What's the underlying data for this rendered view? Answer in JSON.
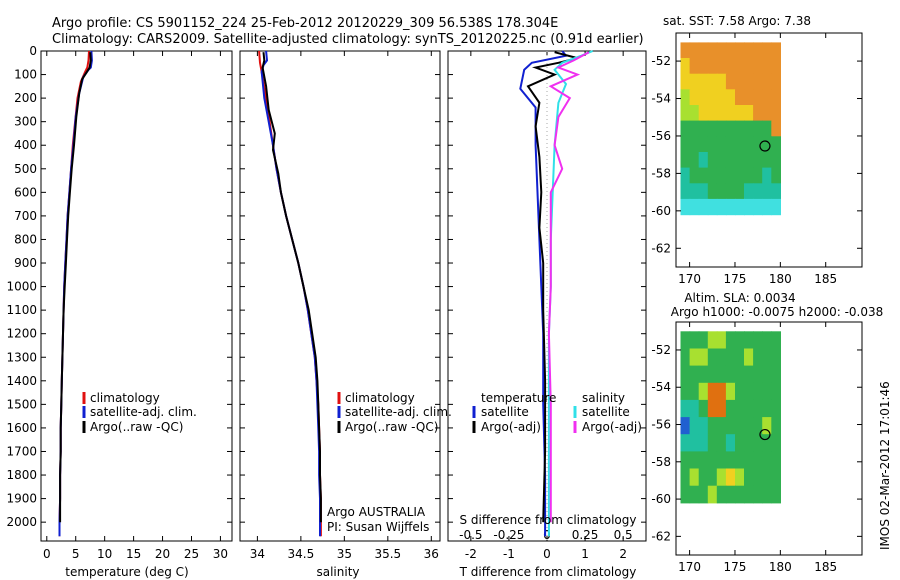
{
  "header": {
    "line1": "Argo profile: CS 5901152_224 25-Feb-2012 20120229_309 56.538S 178.304E",
    "line2": "Climatology: CARS2009. Satellite-adjusted climatology: synTS_20120225.nc (0.91d earlier)"
  },
  "colors": {
    "climatology": "#e01010",
    "satellite": "#1020d0",
    "argo": "#000000",
    "sal_satellite": "#30e0e8",
    "sal_argo": "#f030f0"
  },
  "chart_data": [
    {
      "type": "line",
      "panel": "temperature",
      "xlabel": "temperature (deg C)",
      "ylabel": "",
      "xlim": [
        -1,
        32
      ],
      "xticks": [
        0,
        5,
        10,
        15,
        20,
        25,
        30
      ],
      "xtick_labels": [
        "0",
        "5",
        "10",
        "15",
        "20",
        "25",
        "30"
      ],
      "ylim": [
        2080,
        0
      ],
      "yticks": [
        0,
        100,
        200,
        300,
        400,
        500,
        600,
        700,
        800,
        900,
        1000,
        1100,
        1200,
        1300,
        1400,
        1500,
        1600,
        1700,
        1800,
        1900,
        2000
      ],
      "legend": [
        "climatology",
        "satellite-adj. clim.",
        "Argo(..raw -QC)"
      ],
      "series": [
        {
          "name": "climatology",
          "color_key": "climatology",
          "points": [
            [
              7.3,
              0
            ],
            [
              7.2,
              40
            ],
            [
              7.0,
              70
            ],
            [
              6.6,
              90
            ],
            [
              5.9,
              130
            ],
            [
              5.3,
              200
            ],
            [
              4.9,
              300
            ],
            [
              4.5,
              400
            ],
            [
              4.2,
              500
            ],
            [
              3.9,
              600
            ],
            [
              3.6,
              700
            ],
            [
              3.4,
              800
            ],
            [
              3.2,
              900
            ],
            [
              3.0,
              1000
            ],
            [
              2.9,
              1100
            ],
            [
              2.8,
              1200
            ],
            [
              2.7,
              1300
            ],
            [
              2.6,
              1400
            ],
            [
              2.5,
              1500
            ],
            [
              2.4,
              1600
            ],
            [
              2.4,
              1700
            ],
            [
              2.3,
              1800
            ],
            [
              2.3,
              1900
            ],
            [
              2.2,
              2000
            ],
            [
              2.2,
              2060
            ]
          ]
        },
        {
          "name": "satellite-adj. clim.",
          "color_key": "satellite",
          "points": [
            [
              7.7,
              0
            ],
            [
              7.8,
              40
            ],
            [
              7.6,
              70
            ],
            [
              7.2,
              80
            ],
            [
              6.3,
              110
            ],
            [
              5.6,
              180
            ],
            [
              5.0,
              280
            ],
            [
              4.6,
              400
            ],
            [
              4.2,
              500
            ],
            [
              3.9,
              600
            ],
            [
              3.6,
              700
            ],
            [
              3.4,
              800
            ],
            [
              3.2,
              900
            ],
            [
              3.0,
              1000
            ],
            [
              2.9,
              1100
            ],
            [
              2.8,
              1200
            ],
            [
              2.7,
              1300
            ],
            [
              2.6,
              1400
            ],
            [
              2.5,
              1500
            ],
            [
              2.4,
              1600
            ],
            [
              2.4,
              1700
            ],
            [
              2.3,
              1800
            ],
            [
              2.3,
              1900
            ],
            [
              2.2,
              2000
            ],
            [
              2.2,
              2060
            ]
          ]
        },
        {
          "name": "Argo(..raw -QC)",
          "color_key": "argo",
          "points": [
            [
              7.5,
              5
            ],
            [
              7.6,
              40
            ],
            [
              7.4,
              70
            ],
            [
              6.9,
              90
            ],
            [
              6.1,
              120
            ],
            [
              5.6,
              180
            ],
            [
              5.1,
              280
            ],
            [
              4.7,
              400
            ],
            [
              4.3,
              500
            ],
            [
              4.0,
              600
            ],
            [
              3.7,
              700
            ],
            [
              3.5,
              800
            ],
            [
              3.3,
              900
            ],
            [
              3.1,
              1000
            ],
            [
              2.9,
              1100
            ],
            [
              2.8,
              1200
            ],
            [
              2.7,
              1300
            ],
            [
              2.6,
              1400
            ],
            [
              2.5,
              1500
            ],
            [
              2.4,
              1600
            ],
            [
              2.4,
              1700
            ],
            [
              2.3,
              1800
            ],
            [
              2.3,
              1900
            ],
            [
              2.3,
              2000
            ]
          ]
        }
      ]
    },
    {
      "type": "line",
      "panel": "salinity",
      "xlabel": "salinity",
      "ylabel": "",
      "xlim": [
        33.8,
        36.1
      ],
      "xticks": [
        34,
        34.5,
        35,
        35.5,
        36
      ],
      "xtick_labels": [
        "34",
        "34.5",
        "35",
        "35.5",
        "36"
      ],
      "ylim": [
        2080,
        0
      ],
      "legend": [
        "climatology",
        "satellite-adj. clim.",
        "Argo(..raw -QC)"
      ],
      "annotations": [
        "Argo AUSTRALIA",
        "PI: Susan Wijffels"
      ],
      "series": [
        {
          "name": "climatology",
          "color_key": "climatology",
          "points": [
            [
              34.02,
              0
            ],
            [
              34.03,
              50
            ],
            [
              34.05,
              90
            ],
            [
              34.1,
              200
            ],
            [
              34.14,
              300
            ],
            [
              34.18,
              400
            ],
            [
              34.22,
              500
            ],
            [
              34.27,
              600
            ],
            [
              34.33,
              700
            ],
            [
              34.4,
              800
            ],
            [
              34.47,
              900
            ],
            [
              34.53,
              1000
            ],
            [
              34.58,
              1100
            ],
            [
              34.62,
              1200
            ],
            [
              34.66,
              1300
            ],
            [
              34.68,
              1400
            ],
            [
              34.7,
              1500
            ],
            [
              34.71,
              1600
            ],
            [
              34.72,
              1700
            ],
            [
              34.72,
              1800
            ],
            [
              34.73,
              1900
            ],
            [
              34.73,
              2000
            ],
            [
              34.73,
              2060
            ]
          ]
        },
        {
          "name": "satellite-adj. clim.",
          "color_key": "satellite",
          "points": [
            [
              34.1,
              0
            ],
            [
              34.11,
              40
            ],
            [
              34.07,
              60
            ],
            [
              34.05,
              90
            ],
            [
              34.08,
              200
            ],
            [
              34.13,
              300
            ],
            [
              34.18,
              400
            ],
            [
              34.22,
              500
            ],
            [
              34.27,
              600
            ],
            [
              34.33,
              700
            ],
            [
              34.4,
              800
            ],
            [
              34.47,
              900
            ],
            [
              34.53,
              1000
            ],
            [
              34.58,
              1100
            ],
            [
              34.62,
              1200
            ],
            [
              34.66,
              1300
            ],
            [
              34.68,
              1400
            ],
            [
              34.69,
              1500
            ],
            [
              34.7,
              1600
            ],
            [
              34.71,
              1700
            ],
            [
              34.71,
              1800
            ],
            [
              34.72,
              1900
            ],
            [
              34.72,
              2000
            ],
            [
              34.72,
              2060
            ]
          ]
        },
        {
          "name": "Argo(..raw -QC)",
          "color_key": "argo",
          "points": [
            [
              34.07,
              5
            ],
            [
              34.08,
              40
            ],
            [
              34.06,
              70
            ],
            [
              34.1,
              150
            ],
            [
              34.13,
              250
            ],
            [
              34.2,
              350
            ],
            [
              34.18,
              420
            ],
            [
              34.24,
              520
            ],
            [
              34.27,
              600
            ],
            [
              34.33,
              700
            ],
            [
              34.4,
              800
            ],
            [
              34.47,
              900
            ],
            [
              34.53,
              1000
            ],
            [
              34.59,
              1100
            ],
            [
              34.63,
              1200
            ],
            [
              34.67,
              1300
            ],
            [
              34.69,
              1400
            ],
            [
              34.7,
              1500
            ],
            [
              34.71,
              1600
            ],
            [
              34.72,
              1700
            ],
            [
              34.72,
              1800
            ],
            [
              34.73,
              1900
            ],
            [
              34.73,
              2000
            ]
          ]
        }
      ]
    },
    {
      "type": "line",
      "panel": "difference",
      "xlabel": "T difference from climatology",
      "xlabel_top": "S difference from climatology",
      "xlim": [
        -2.6,
        2.6
      ],
      "xticks": [
        -2,
        -1,
        0,
        1,
        2
      ],
      "xtick_labels": [
        "-2",
        "-1",
        "0",
        "1",
        "2"
      ],
      "top_tick_labels": [
        "-0.5",
        "-0.25",
        "0",
        "0.25",
        "0.5"
      ],
      "ylim": [
        2080,
        0
      ],
      "legend_temperature": {
        "title": "temperature",
        "items": [
          "satellite",
          "Argo(-adj)"
        ]
      },
      "legend_salinity": {
        "title": "salinity",
        "items": [
          "satellite",
          "Argo(-adj)"
        ]
      },
      "series": [
        {
          "name": "temperature satellite",
          "color_key": "satellite",
          "points": [
            [
              0.4,
              0
            ],
            [
              0.5,
              20
            ],
            [
              -0.4,
              50
            ],
            [
              -0.6,
              80
            ],
            [
              -0.7,
              160
            ],
            [
              -0.3,
              240
            ],
            [
              -0.3,
              400
            ],
            [
              -0.25,
              600
            ],
            [
              -0.2,
              800
            ],
            [
              -0.15,
              1000
            ],
            [
              -0.1,
              1200
            ],
            [
              -0.1,
              1500
            ],
            [
              -0.05,
              1800
            ],
            [
              -0.05,
              2060
            ]
          ]
        },
        {
          "name": "temperature Argo(-adj)",
          "color_key": "argo",
          "points": [
            [
              0.2,
              5
            ],
            [
              0.8,
              30
            ],
            [
              0.3,
              50
            ],
            [
              -0.3,
              70
            ],
            [
              0.2,
              100
            ],
            [
              -0.5,
              150
            ],
            [
              -0.2,
              220
            ],
            [
              -0.3,
              320
            ],
            [
              -0.2,
              450
            ],
            [
              -0.15,
              600
            ],
            [
              -0.2,
              750
            ],
            [
              -0.1,
              900
            ],
            [
              -0.1,
              1100
            ],
            [
              -0.05,
              1400
            ],
            [
              -0.05,
              1700
            ],
            [
              -0.1,
              2000
            ]
          ]
        },
        {
          "name": "salinity satellite",
          "color_key": "sal_satellite",
          "points": [
            [
              1.2,
              0
            ],
            [
              0.9,
              20
            ],
            [
              0.4,
              50
            ],
            [
              0.2,
              80
            ],
            [
              0.5,
              140
            ],
            [
              0.3,
              220
            ],
            [
              0.2,
              400
            ],
            [
              0.15,
              600
            ],
            [
              0.1,
              800
            ],
            [
              0.1,
              1000
            ],
            [
              0.05,
              1200
            ],
            [
              0.05,
              1500
            ],
            [
              0.05,
              1800
            ],
            [
              0.05,
              2060
            ]
          ]
        },
        {
          "name": "salinity Argo(-adj)",
          "color_key": "sal_argo",
          "points": [
            [
              1.1,
              5
            ],
            [
              0.7,
              40
            ],
            [
              0.3,
              70
            ],
            [
              0.8,
              100
            ],
            [
              0.1,
              150
            ],
            [
              0.6,
              200
            ],
            [
              0.3,
              280
            ],
            [
              0.2,
              400
            ],
            [
              0.4,
              500
            ],
            [
              0.1,
              600
            ],
            [
              0.1,
              800
            ],
            [
              0.1,
              1000
            ],
            [
              0.05,
              1200
            ],
            [
              0.1,
              1500
            ],
            [
              0.1,
              1800
            ],
            [
              0.1,
              2000
            ]
          ]
        }
      ]
    },
    {
      "type": "heatmap",
      "panel": "sst-map",
      "title": "sat. SST: 7.58 Argo: 7.38",
      "xlim": [
        168.5,
        189
      ],
      "ylim": [
        -63,
        -50.5
      ],
      "xticks": [
        170,
        175,
        180,
        185
      ],
      "yticks": [
        -52,
        -54,
        -56,
        -58,
        -60,
        -62
      ],
      "data_extent": {
        "lon": [
          169,
          180
        ],
        "lat": [
          -60.2,
          -51
        ]
      },
      "rows": [
        "OOOOOOOOOOO",
        "YOOOOOOOOOO",
        "YYYYYOOOOOO",
        "LYYYYYOOOOO",
        "LLYYYYYYOOO",
        "GGGGGGGGGGO",
        "GGGGGGGGGGG",
        "GGTGGGGGGGG",
        "TGGGGGGGGTG",
        "TTTGGGGTTTT",
        "CCCCCCCCCCC"
      ],
      "palette": {
        "O": "#e8902a",
        "Y": "#f0d020",
        "L": "#a8e030",
        "G": "#30b050",
        "T": "#20c0a0",
        "C": "#40e0e0"
      },
      "argo_marker": {
        "lon": 178.304,
        "lat": -56.538
      }
    },
    {
      "type": "heatmap",
      "panel": "sla-map",
      "title": "Altim. SLA: 0.0034",
      "subtitle": "Argo h1000: -0.0075 h2000: -0.038",
      "xlim": [
        168.5,
        189
      ],
      "ylim": [
        -63,
        -50.5
      ],
      "xticks": [
        170,
        175,
        180,
        185
      ],
      "yticks": [
        -52,
        -54,
        -56,
        -58,
        -60,
        -62
      ],
      "data_extent": {
        "lon": [
          169,
          180
        ],
        "lat": [
          -60.2,
          -51
        ]
      },
      "rows": [
        "GGGLLGGGGGG",
        "GLLGGGGLGGG",
        "GGGGGGGGGGG",
        "GGLOOLGGGGG",
        "TTGOOGGGGGG",
        "BTTGGGGGGLG",
        "TTTGGTGGGGG",
        "GGGGGGGGGGG",
        "GLGGLYLGGGG",
        "GGGLGGGGGGG"
      ],
      "palette": {
        "G": "#30b050",
        "L": "#a8e030",
        "Y": "#f0d020",
        "O": "#e07010",
        "T": "#20c0a0",
        "B": "#2060d0"
      },
      "argo_marker": {
        "lon": 178.304,
        "lat": -56.538
      }
    }
  ],
  "footer": {
    "stamp": "IMOS 02-Mar-2012 17:01:46"
  }
}
